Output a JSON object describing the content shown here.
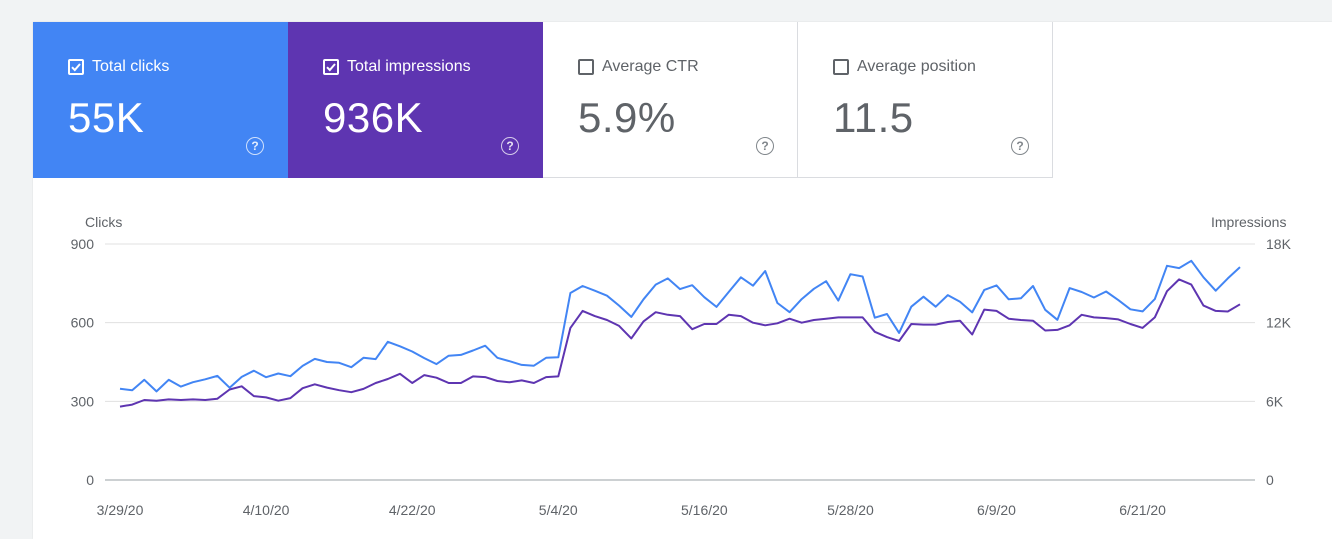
{
  "tiles": [
    {
      "id": "clicks",
      "label": "Total clicks",
      "value": "55K",
      "checked": true
    },
    {
      "id": "impressions",
      "label": "Total impressions",
      "value": "936K",
      "checked": true
    },
    {
      "id": "ctr",
      "label": "Average CTR",
      "value": "5.9%",
      "checked": false
    },
    {
      "id": "position",
      "label": "Average position",
      "value": "11.5",
      "checked": false
    }
  ],
  "help_glyph": "?",
  "colors": {
    "clicks": "#4285f4",
    "impressions": "#5e35b1",
    "grid": "#e0e0e0",
    "axis": "#9aa0a6",
    "text": "#5f6368"
  },
  "chart_data": {
    "type": "line",
    "y_left": {
      "label": "Clicks",
      "min": 0,
      "max": 900,
      "ticks": [
        0,
        300,
        600,
        900
      ],
      "tick_labels": [
        "0",
        "300",
        "600",
        "900"
      ]
    },
    "y_right": {
      "label": "Impressions",
      "min": 0,
      "max": 18000,
      "ticks": [
        0,
        6000,
        12000,
        18000
      ],
      "tick_labels": [
        "0",
        "6K",
        "12K",
        "18K"
      ]
    },
    "x_tick_labels": [
      "3/29/20",
      "4/10/20",
      "4/22/20",
      "5/4/20",
      "5/16/20",
      "5/28/20",
      "6/9/20",
      "6/21/20"
    ],
    "x_tick_indices": [
      0,
      12,
      24,
      36,
      48,
      60,
      72,
      84
    ],
    "series": [
      {
        "name": "Clicks",
        "axis": "left",
        "color": "#4285f4",
        "values": [
          348,
          342,
          382,
          338,
          382,
          356,
          373,
          384,
          397,
          352,
          393,
          417,
          392,
          406,
          396,
          435,
          462,
          450,
          447,
          430,
          466,
          461,
          527,
          510,
          490,
          465,
          442,
          474,
          477,
          494,
          512,
          466,
          453,
          439,
          436,
          466,
          468,
          713,
          740,
          722,
          703,
          665,
          622,
          689,
          745,
          769,
          728,
          743,
          697,
          660,
          717,
          773,
          741,
          797,
          675,
          640,
          690,
          729,
          758,
          684,
          785,
          776,
          619,
          633,
          561,
          661,
          699,
          661,
          705,
          680,
          639,
          725,
          742,
          689,
          693,
          740,
          649,
          611,
          732,
          717,
          696,
          719,
          686,
          651,
          643,
          690,
          817,
          808,
          836,
          773,
          722,
          769,
          812
        ]
      },
      {
        "name": "Impressions",
        "axis": "right",
        "color": "#5e35b1",
        "values": [
          5600,
          5750,
          6100,
          6050,
          6150,
          6100,
          6150,
          6100,
          6200,
          6900,
          7150,
          6400,
          6300,
          6050,
          6250,
          7000,
          7300,
          7050,
          6850,
          6700,
          6950,
          7400,
          7700,
          8100,
          7400,
          8000,
          7800,
          7400,
          7400,
          7900,
          7850,
          7550,
          7450,
          7600,
          7400,
          7850,
          7900,
          11600,
          12900,
          12500,
          12200,
          11750,
          10800,
          12100,
          12800,
          12600,
          12500,
          11500,
          11900,
          11900,
          12600,
          12500,
          12000,
          11800,
          11950,
          12300,
          12000,
          12200,
          12300,
          12400,
          12400,
          12400,
          11300,
          10900,
          10600,
          11900,
          11850,
          11850,
          12050,
          12150,
          11100,
          13000,
          12900,
          12300,
          12200,
          12150,
          11400,
          11450,
          11800,
          12600,
          12400,
          12350,
          12250,
          11900,
          11600,
          12400,
          14400,
          15300,
          14900,
          13300,
          12900,
          12850,
          13400
        ]
      }
    ]
  }
}
